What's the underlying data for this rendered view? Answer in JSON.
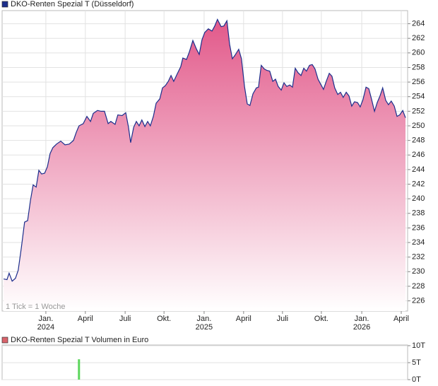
{
  "chart_data": [
    {
      "type": "area",
      "annotation": "1 Tick = 1 Woche",
      "x": [
        0.5,
        1.6,
        2.3,
        3.3,
        4.4,
        5.3,
        6.3,
        7.4,
        8.4,
        9.3,
        10.2,
        11.2,
        12.1,
        13.0,
        14.0,
        14.9,
        15.8,
        16.7,
        17.9,
        19.3,
        20.7,
        22.1,
        23.5,
        24.4,
        25.3,
        26.7,
        27.9,
        29.1,
        30.0,
        31.4,
        32.6,
        33.7,
        34.9,
        35.8,
        37.2,
        38.1,
        39.5,
        40.7,
        41.6,
        42.3,
        43.3,
        44.2,
        45.1,
        46.0,
        47.0,
        47.9,
        48.8,
        49.8,
        50.7,
        51.9,
        52.8,
        53.7,
        54.7,
        55.6,
        56.5,
        57.4,
        58.8,
        59.5,
        60.7,
        61.6,
        62.8,
        64.0,
        64.9,
        65.8,
        66.7,
        67.9,
        69.1,
        70.0,
        70.9,
        72.1,
        73.0,
        74.0,
        74.9,
        75.8,
        76.7,
        77.9,
        78.8,
        79.8,
        80.7,
        81.6,
        82.6,
        83.7,
        84.4,
        85.3,
        86.3,
        87.2,
        88.1,
        89.1,
        90.0,
        90.9,
        91.9,
        92.8,
        93.7,
        94.7,
        95.6,
        96.5,
        97.4,
        98.4,
        99.3,
        100.2,
        101.2,
        102.1,
        103.0,
        104.0,
        104.9,
        105.8,
        106.7,
        107.7,
        108.6,
        109.5,
        110.5,
        111.4,
        112.3,
        113.3,
        114.2,
        115.1,
        116.0,
        117.0,
        117.9,
        118.8,
        119.8,
        120.7,
        121.6,
        122.6,
        123.5,
        124.4,
        125.3,
        126.3,
        127.2,
        128.1,
        129.1,
        130.0,
        130.9,
        131.9,
        132.8
      ],
      "series": [
        {
          "name": "DKO-Renten Spezial T (Düsseldorf)",
          "color": "#1c2e8c",
          "values": [
            229.0,
            228.9,
            229.8,
            228.7,
            229.1,
            230.2,
            233.2,
            236.8,
            237.0,
            239.7,
            241.9,
            241.6,
            243.9,
            243.4,
            243.5,
            244.4,
            246.2,
            247.0,
            247.5,
            247.9,
            247.4,
            247.5,
            248.0,
            249.1,
            250.0,
            250.3,
            251.3,
            250.6,
            251.7,
            252.1,
            252.0,
            252.0,
            250.3,
            250.6,
            250.2,
            251.5,
            251.4,
            251.8,
            249.8,
            247.7,
            249.8,
            250.6,
            250.0,
            250.8,
            249.9,
            250.6,
            250.0,
            251.3,
            253.1,
            253.7,
            255.2,
            255.5,
            256.1,
            256.9,
            256.1,
            256.9,
            258.1,
            259.3,
            259.1,
            260.1,
            261.7,
            260.5,
            259.8,
            261.8,
            262.8,
            263.3,
            263.0,
            263.7,
            264.6,
            263.6,
            263.7,
            264.4,
            261.2,
            259.2,
            259.7,
            260.5,
            259.2,
            255.4,
            253.0,
            252.8,
            254.4,
            255.2,
            255.3,
            258.3,
            257.8,
            257.6,
            257.5,
            256.1,
            256.4,
            255.4,
            254.9,
            255.9,
            255.4,
            255.6,
            255.3,
            257.9,
            257.3,
            256.9,
            257.9,
            257.5,
            258.3,
            258.4,
            257.8,
            256.4,
            255.7,
            255.0,
            256.1,
            257.2,
            256.8,
            255.2,
            254.3,
            254.6,
            253.9,
            254.6,
            254.1,
            252.7,
            253.3,
            253.2,
            252.6,
            253.6,
            255.3,
            255.1,
            253.7,
            252.0,
            253.2,
            254.1,
            255.2,
            253.5,
            252.9,
            253.4,
            252.7,
            251.3,
            251.5,
            252.1,
            251.1
          ]
        }
      ],
      "fill_color": "#e2598a",
      "xlim": [
        0,
        133.5
      ],
      "xticks": [
        {
          "value": 14.4,
          "label": "Jan. 2024"
        },
        {
          "value": 27.4,
          "label": "April"
        },
        {
          "value": 40.5,
          "label": "Juli"
        },
        {
          "value": 53.3,
          "label": "Okt."
        },
        {
          "value": 66.5,
          "label": "Jan. 2025"
        },
        {
          "value": 79.5,
          "label": "April"
        },
        {
          "value": 92.3,
          "label": "Juli"
        },
        {
          "value": 105.1,
          "label": "Okt."
        },
        {
          "value": 118.4,
          "label": "Jan. 2026"
        },
        {
          "value": 131.4,
          "label": "April"
        }
      ],
      "ylim": [
        224.6,
        265.8
      ],
      "yticks": [
        226,
        228,
        230,
        232,
        234,
        236,
        238,
        240,
        242,
        244,
        246,
        248,
        250,
        252,
        254,
        256,
        258,
        260,
        262,
        264
      ],
      "grid": true
    },
    {
      "type": "bar",
      "x": [
        25.3
      ],
      "series": [
        {
          "name": "DKO-Renten Spezial T Volumen in Euro",
          "color": "#d9636b",
          "values": [
            6
          ]
        }
      ],
      "bar_color": "#5cd65c",
      "xlim": [
        0,
        133.5
      ],
      "ylim": [
        0,
        10.2
      ],
      "yticks": [
        {
          "value": 0,
          "label": "0T"
        },
        {
          "value": 5,
          "label": "5T"
        },
        {
          "value": 10,
          "label": "10T"
        }
      ],
      "grid": true
    }
  ]
}
